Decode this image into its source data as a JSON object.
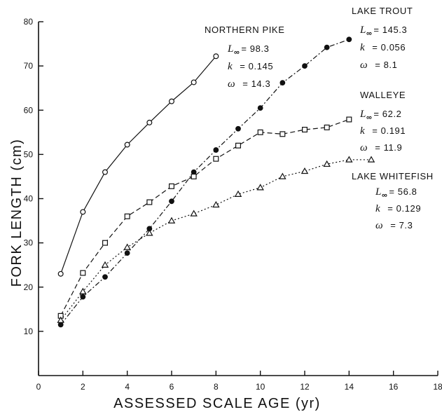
{
  "chart_data": {
    "type": "line",
    "xlabel": "ASSESSED SCALE AGE (yr)",
    "ylabel": "FORK LENGTH (cm)",
    "xlim": [
      0,
      18
    ],
    "ylim": [
      0,
      80
    ],
    "xticks": [
      0,
      2,
      4,
      6,
      8,
      10,
      12,
      14,
      16,
      18
    ],
    "xtick_labels": [
      "0",
      "2",
      "4",
      "6",
      "8",
      "10",
      "12",
      "14",
      "16",
      "18"
    ],
    "yticks": [
      10,
      20,
      30,
      40,
      50,
      60,
      70,
      80
    ],
    "ytick_labels": [
      "10",
      "20",
      "30",
      "40",
      "50",
      "60",
      "70",
      "80"
    ],
    "grid": false,
    "legend": "none",
    "series": [
      {
        "name": "NORTHERN PIKE",
        "marker": "open-circle",
        "line": "solid",
        "x": [
          1,
          2,
          3,
          4,
          5,
          6,
          7,
          8
        ],
        "y": [
          23,
          37,
          46,
          52.2,
          57.2,
          62,
          66.3,
          72.2
        ],
        "params": [
          {
            "symbol": "L",
            "sub": "∞",
            "value": "= 98.3"
          },
          {
            "symbol": "k",
            "sub": "",
            "value": "= 0.145"
          },
          {
            "symbol": "ω",
            "sub": "",
            "value": "= 14.3"
          }
        ]
      },
      {
        "name": "LAKE TROUT",
        "marker": "filled-circle",
        "line": "dash-dot",
        "x": [
          1,
          2,
          3,
          4,
          5,
          6,
          7,
          8,
          9,
          10,
          11,
          12,
          13,
          14
        ],
        "y": [
          11.5,
          17.8,
          22.3,
          27.7,
          33.2,
          39.4,
          46,
          51,
          55.8,
          60.5,
          66.2,
          70,
          74.2,
          76
        ],
        "params": [
          {
            "symbol": "L",
            "sub": "∞",
            "value": "= 145.3"
          },
          {
            "symbol": "k",
            "sub": "",
            "value": "= 0.056"
          },
          {
            "symbol": "ω",
            "sub": "",
            "value": "= 8.1"
          }
        ]
      },
      {
        "name": "WALLEYE",
        "marker": "open-square",
        "line": "dashed",
        "x": [
          1,
          2,
          3,
          4,
          5,
          6,
          7,
          8,
          9,
          10,
          11,
          12,
          13,
          14
        ],
        "y": [
          13.5,
          23.2,
          30,
          36,
          39.2,
          42.8,
          45,
          49,
          52,
          55,
          54.6,
          55.6,
          56.1,
          57.9
        ],
        "params": [
          {
            "symbol": "L",
            "sub": "∞",
            "value": "= 62.2"
          },
          {
            "symbol": "k",
            "sub": "",
            "value": "= 0.191"
          },
          {
            "symbol": "ω",
            "sub": "",
            "value": "= 11.9"
          }
        ]
      },
      {
        "name": "LAKE WHITEFISH",
        "marker": "open-triangle",
        "line": "dotted",
        "x": [
          1,
          2,
          3,
          4,
          5,
          6,
          7,
          8,
          9,
          10,
          11,
          12,
          13,
          14,
          15
        ],
        "y": [
          12.5,
          19,
          25,
          29,
          32.2,
          35,
          36.6,
          38.6,
          41,
          42.5,
          45,
          46.2,
          47.8,
          48.8,
          48.8
        ],
        "params": [
          {
            "symbol": "L",
            "sub": "∞",
            "value": "= 56.8"
          },
          {
            "symbol": "k",
            "sub": "",
            "value": "= 0.129"
          },
          {
            "symbol": "ω",
            "sub": "",
            "value": "= 7.3"
          }
        ]
      }
    ]
  }
}
